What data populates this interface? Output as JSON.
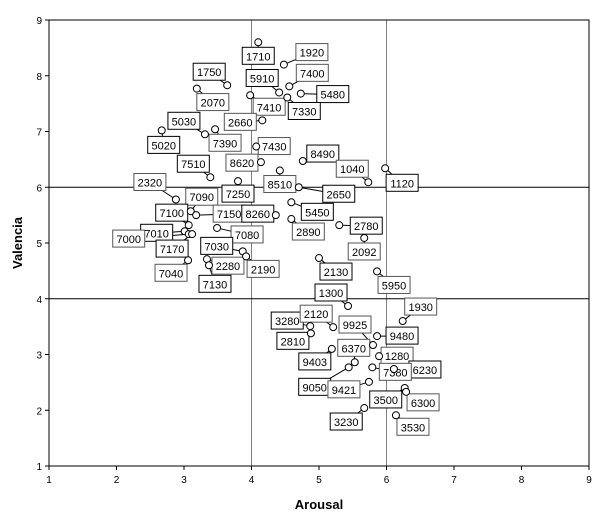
{
  "chart_data": {
    "type": "scatter",
    "xlabel": "Arousal",
    "ylabel": "Valencia",
    "xlim": [
      1,
      9
    ],
    "ylim": [
      1,
      9
    ],
    "xticks": [
      1,
      2,
      3,
      4,
      5,
      6,
      7,
      8,
      9
    ],
    "yticks": [
      1,
      2,
      3,
      4,
      5,
      6,
      7,
      8,
      9
    ],
    "reference_lines": {
      "x": [
        4,
        6
      ],
      "y": [
        4,
        6
      ]
    },
    "grid": false,
    "points": [
      {
        "label": "1710",
        "x": 4.1,
        "y": 8.6
      },
      {
        "label": "1920",
        "x": 4.48,
        "y": 8.2
      },
      {
        "label": "1750",
        "x": 3.64,
        "y": 7.83
      },
      {
        "label": "7400",
        "x": 4.56,
        "y": 7.81
      },
      {
        "label": "5910",
        "x": 4.41,
        "y": 7.7
      },
      {
        "label": "2070",
        "x": 3.19,
        "y": 7.77
      },
      {
        "label": "5480",
        "x": 4.73,
        "y": 7.68
      },
      {
        "label": "7410",
        "x": 3.98,
        "y": 7.65
      },
      {
        "label": "7330",
        "x": 4.53,
        "y": 7.61
      },
      {
        "label": "2660",
        "x": 4.16,
        "y": 7.2
      },
      {
        "label": "5030",
        "x": 3.31,
        "y": 6.95
      },
      {
        "label": "7390",
        "x": 3.46,
        "y": 7.04
      },
      {
        "label": "5020",
        "x": 2.67,
        "y": 7.02
      },
      {
        "label": "7430",
        "x": 4.07,
        "y": 6.73
      },
      {
        "label": "8490",
        "x": 4.76,
        "y": 6.47
      },
      {
        "label": "8620",
        "x": 4.14,
        "y": 6.45
      },
      {
        "label": "7510",
        "x": 3.39,
        "y": 6.18
      },
      {
        "label": "1040",
        "x": 5.73,
        "y": 6.09
      },
      {
        "label": "1120",
        "x": 5.98,
        "y": 6.34
      },
      {
        "label": "8510",
        "x": 4.42,
        "y": 6.3
      },
      {
        "label": "2650",
        "x": 4.7,
        "y": 6.0
      },
      {
        "label": "2320",
        "x": 2.88,
        "y": 5.78
      },
      {
        "label": "7250",
        "x": 3.8,
        "y": 6.11
      },
      {
        "label": "7090",
        "x": 3.1,
        "y": 5.57
      },
      {
        "label": "7100",
        "x": 3.07,
        "y": 5.32
      },
      {
        "label": "7150",
        "x": 3.18,
        "y": 5.5
      },
      {
        "label": "8260",
        "x": 4.36,
        "y": 5.5
      },
      {
        "label": "7080",
        "x": 3.49,
        "y": 5.27
      },
      {
        "label": "7010",
        "x": 3.01,
        "y": 5.21
      },
      {
        "label": "7000",
        "x": 3.07,
        "y": 5.16
      },
      {
        "label": "7170",
        "x": 3.12,
        "y": 5.16
      },
      {
        "label": "7040",
        "x": 3.06,
        "y": 4.69
      },
      {
        "label": "7030",
        "x": 3.87,
        "y": 4.85
      },
      {
        "label": "2280",
        "x": 3.34,
        "y": 4.71
      },
      {
        "label": "7130",
        "x": 3.37,
        "y": 4.6
      },
      {
        "label": "2190",
        "x": 3.92,
        "y": 4.76
      },
      {
        "label": "5450",
        "x": 4.59,
        "y": 5.73
      },
      {
        "label": "2890",
        "x": 4.59,
        "y": 5.43
      },
      {
        "label": "2780",
        "x": 5.3,
        "y": 5.32
      },
      {
        "label": "2092",
        "x": 5.67,
        "y": 5.09
      },
      {
        "label": "2130",
        "x": 5.0,
        "y": 4.73
      },
      {
        "label": "5950",
        "x": 5.86,
        "y": 4.49
      },
      {
        "label": "1300",
        "x": 5.43,
        "y": 3.87
      },
      {
        "label": "1930",
        "x": 6.24,
        "y": 3.6
      },
      {
        "label": "3280",
        "x": 4.87,
        "y": 3.51
      },
      {
        "label": "2120",
        "x": 5.21,
        "y": 3.49
      },
      {
        "label": "2810",
        "x": 4.88,
        "y": 3.38
      },
      {
        "label": "9925",
        "x": 5.8,
        "y": 3.17
      },
      {
        "label": "9480",
        "x": 5.86,
        "y": 3.33
      },
      {
        "label": "6370",
        "x": 5.53,
        "y": 2.86
      },
      {
        "label": "9403",
        "x": 5.19,
        "y": 3.1
      },
      {
        "label": "1280",
        "x": 5.89,
        "y": 2.97
      },
      {
        "label": "6230",
        "x": 6.11,
        "y": 2.74
      },
      {
        "label": "7380",
        "x": 5.79,
        "y": 2.77
      },
      {
        "label": "9050",
        "x": 5.44,
        "y": 2.77
      },
      {
        "label": "9421",
        "x": 5.74,
        "y": 2.51
      },
      {
        "label": "3500",
        "x": 6.27,
        "y": 2.4
      },
      {
        "label": "6300",
        "x": 6.29,
        "y": 2.33
      },
      {
        "label": "3230",
        "x": 5.67,
        "y": 2.04
      },
      {
        "label": "3530",
        "x": 6.14,
        "y": 1.91
      }
    ],
    "colors": {
      "marker_fill": "#ffffff",
      "marker_stroke": "#000000",
      "vertical_ref_line": "#808080",
      "horizontal_ref_line": "#000000"
    }
  }
}
